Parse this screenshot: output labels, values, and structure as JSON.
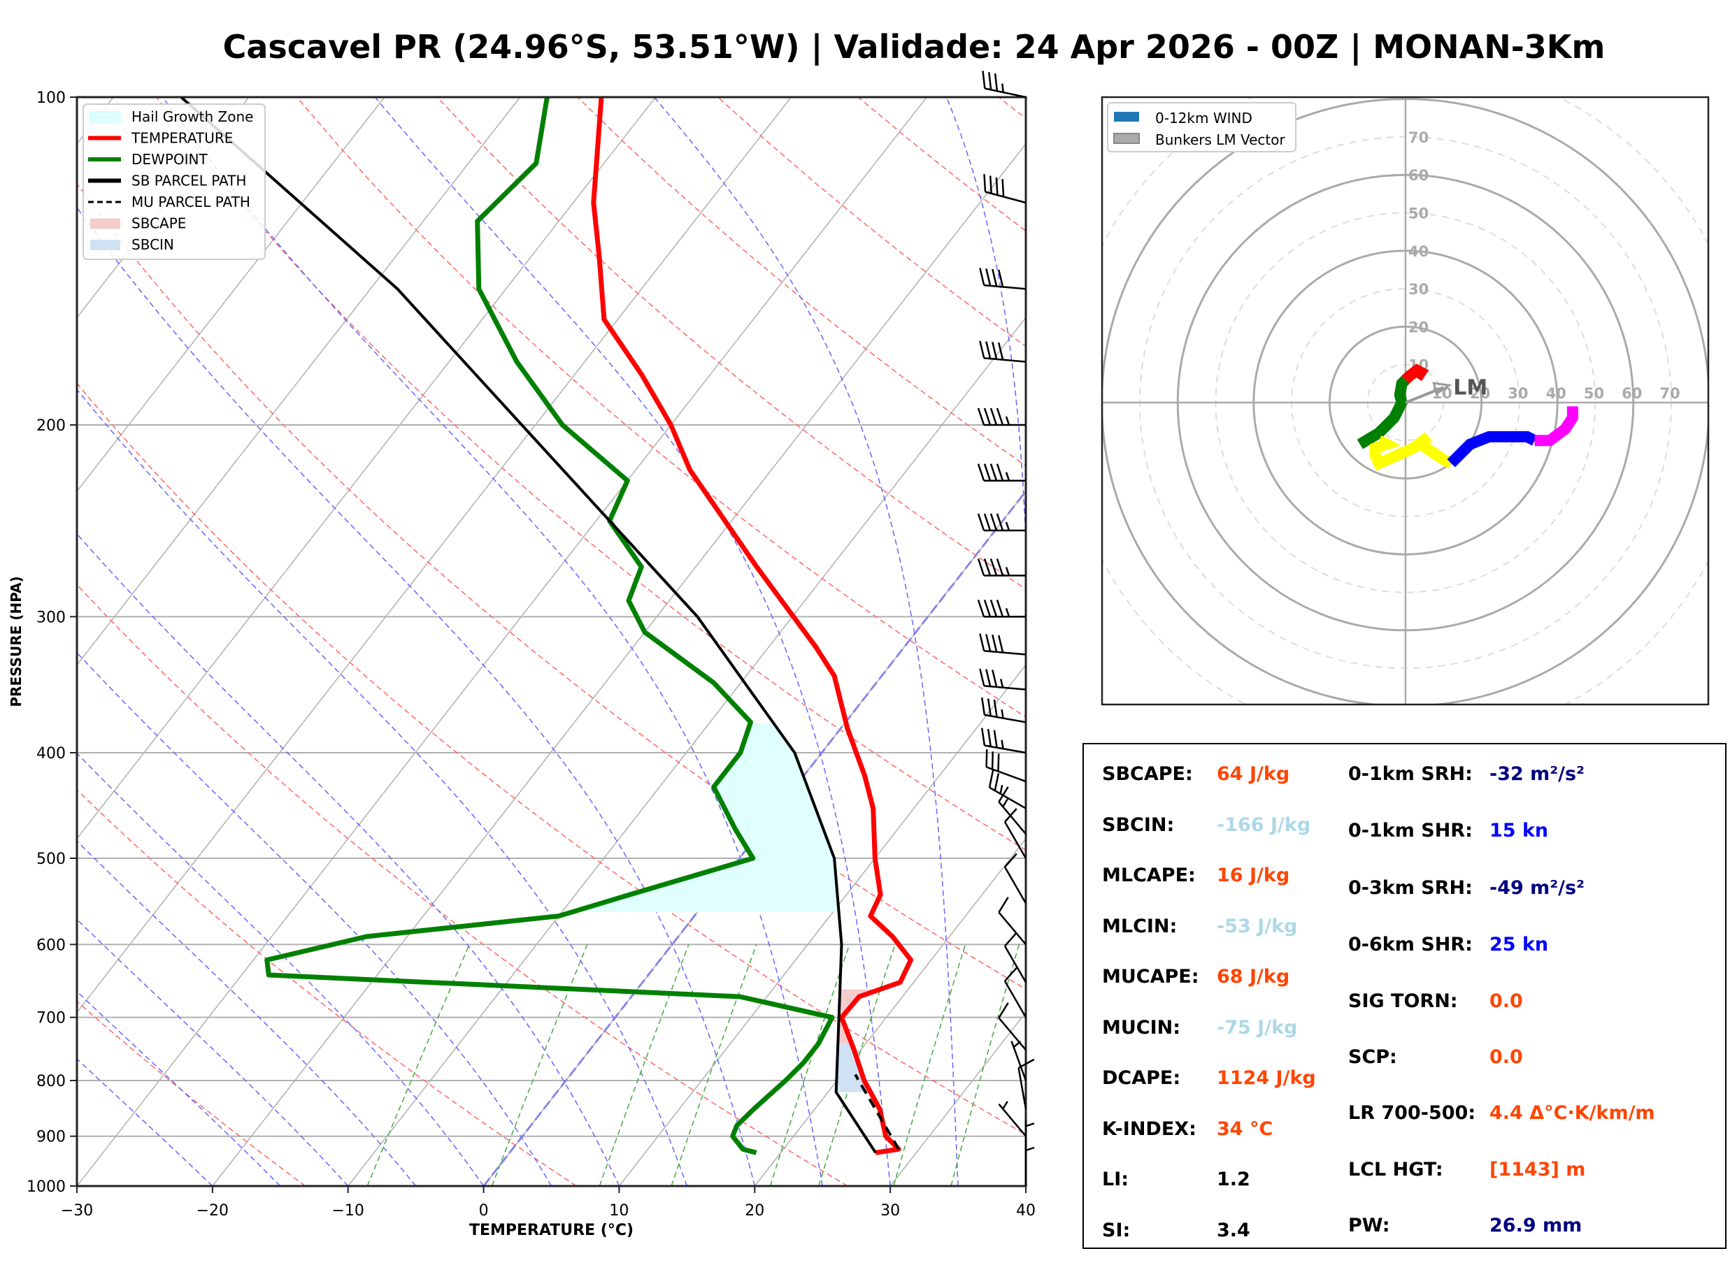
{
  "title": "Cascavel PR (24.96°S, 53.51°W) | Validade: 24 Apr 2026 - 00Z | MONAN-3Km",
  "chart_data": [
    {
      "type": "line",
      "subtype": "skew-t log-p",
      "xlabel": "TEMPERATURE (°C)",
      "ylabel": "PRESSURE (HPA)",
      "xlim": [
        -30,
        40
      ],
      "ylim": [
        1000,
        100
      ],
      "x_ticks": [
        -30,
        -20,
        -10,
        0,
        10,
        20,
        30,
        40
      ],
      "x_tick_labels": [
        "−30",
        "−20",
        "−10",
        "0",
        "10",
        "20",
        "30",
        "40"
      ],
      "y_ticks": [
        1000,
        900,
        800,
        700,
        600,
        500,
        400,
        300,
        200,
        100
      ],
      "y_tick_labels": [
        "1000",
        "900",
        "800",
        "700",
        "600",
        "500",
        "400",
        "300",
        "200",
        "100"
      ],
      "grid": true,
      "legend_position": "top-left",
      "legend": [
        {
          "label": "Hail Growth Zone",
          "kind": "patch",
          "color": "#e0ffff"
        },
        {
          "label": "TEMPERATURE",
          "kind": "line",
          "color": "#ff0000"
        },
        {
          "label": "DEWPOINT",
          "kind": "line",
          "color": "#008000"
        },
        {
          "label": "SB PARCEL PATH",
          "kind": "line",
          "color": "#000000"
        },
        {
          "label": "MU PARCEL PATH",
          "kind": "dashed",
          "color": "#000000"
        },
        {
          "label": "SBCAPE",
          "kind": "patch",
          "color": "#f4cccc"
        },
        {
          "label": "SBCIN",
          "kind": "patch",
          "color": "#cfe2f3"
        }
      ],
      "series": [
        {
          "name": "TEMPERATURE",
          "color": "#ff0000",
          "points": [
            [
              932,
              27.0
            ],
            [
              925,
              28.5
            ],
            [
              900,
              26.8
            ],
            [
              850,
              24.8
            ],
            [
              800,
              22.0
            ],
            [
              750,
              19.5
            ],
            [
              700,
              16.7
            ],
            [
              670,
              16.8
            ],
            [
              650,
              19.0
            ],
            [
              620,
              18.5
            ],
            [
              590,
              15.8
            ],
            [
              565,
              13.0
            ],
            [
              540,
              12.5
            ],
            [
              500,
              10.0
            ],
            [
              450,
              7.0
            ],
            [
              420,
              4.5
            ],
            [
              380,
              0.5
            ],
            [
              340,
              -3.5
            ],
            [
              320,
              -6.5
            ],
            [
              270,
              -15.5
            ],
            [
              220,
              -26.0
            ],
            [
              200,
              -30.0
            ],
            [
              180,
              -35.0
            ],
            [
              160,
              -41.0
            ],
            [
              140,
              -45.0
            ],
            [
              125,
              -48.5
            ],
            [
              100,
              -54.0
            ]
          ]
        },
        {
          "name": "DEWPOINT",
          "color": "#008000",
          "points": [
            [
              932,
              18.2
            ],
            [
              925,
              17.0
            ],
            [
              900,
              15.5
            ],
            [
              880,
              15.2
            ],
            [
              850,
              15.5
            ],
            [
              800,
              16.2
            ],
            [
              770,
              16.5
            ],
            [
              740,
              16.5
            ],
            [
              700,
              16.0
            ],
            [
              670,
              8.0
            ],
            [
              640,
              -28.0
            ],
            [
              620,
              -29.0
            ],
            [
              590,
              -23.0
            ],
            [
              565,
              -10.0
            ],
            [
              540,
              -6.0
            ],
            [
              500,
              1.0
            ],
            [
              470,
              -2.0
            ],
            [
              430,
              -6.0
            ],
            [
              400,
              -6.0
            ],
            [
              375,
              -7.0
            ],
            [
              345,
              -12.0
            ],
            [
              310,
              -20.0
            ],
            [
              290,
              -23.0
            ],
            [
              270,
              -24.0
            ],
            [
              245,
              -29.0
            ],
            [
              225,
              -30.0
            ],
            [
              200,
              -38.0
            ],
            [
              175,
              -45.0
            ],
            [
              150,
              -52.0
            ],
            [
              130,
              -56.0
            ],
            [
              115,
              -55.0
            ],
            [
              100,
              -58.0
            ]
          ]
        },
        {
          "name": "SB PARCEL PATH",
          "color": "#000000",
          "points": [
            [
              932,
              27.0
            ],
            [
              820,
              20.6
            ],
            [
              700,
              16.5
            ],
            [
              600,
              12.5
            ],
            [
              500,
              7.0
            ],
            [
              400,
              -2.0
            ],
            [
              300,
              -17.0
            ],
            [
              200,
              -41.0
            ],
            [
              150,
              -58.0
            ],
            [
              100,
              -85.0
            ]
          ]
        },
        {
          "name": "MU PARCEL PATH",
          "color": "#000000",
          "dashed": true,
          "points": [
            [
              925,
              28.5
            ],
            [
              790,
              21.0
            ]
          ]
        }
      ],
      "shaded_regions": [
        {
          "name": "Hail Growth Zone",
          "pressure_range": [
            560,
            375
          ]
        },
        {
          "name": "SBCAPE",
          "pressure_range": [
            740,
            660
          ]
        },
        {
          "name": "SBCIN",
          "pressure_range": [
            820,
            740
          ]
        }
      ],
      "wind_barbs": {
        "side": "right",
        "levels_hpa": [
          100,
          125,
          150,
          175,
          200,
          225,
          250,
          275,
          300,
          325,
          350,
          375,
          400,
          425,
          450,
          475,
          500,
          550,
          600,
          650,
          700,
          750,
          800,
          850,
          900,
          950,
          1000
        ],
        "speeds_kn": [
          35,
          40,
          40,
          40,
          45,
          45,
          45,
          45,
          45,
          40,
          35,
          35,
          35,
          30,
          25,
          15,
          10,
          10,
          10,
          10,
          10,
          10,
          5,
          10,
          5,
          5,
          5
        ],
        "directions_deg": [
          282,
          285,
          275,
          275,
          270,
          270,
          270,
          270,
          270,
          275,
          275,
          280,
          280,
          290,
          300,
          320,
          330,
          330,
          320,
          330,
          330,
          320,
          340,
          350,
          320,
          0,
          0
        ]
      }
    },
    {
      "type": "line",
      "subtype": "hodograph",
      "legend_position": "top-left",
      "legend": [
        {
          "label": "0-12km WIND",
          "color": "#1f77b4"
        },
        {
          "label": "Bunkers LM Vector",
          "color": "#aaaaaa"
        }
      ],
      "ring_labels": [
        "10",
        "20",
        "30",
        "40",
        "50",
        "60",
        "70"
      ],
      "rings_kn": [
        10,
        20,
        30,
        40,
        50,
        60,
        70
      ],
      "range_kn": 80,
      "annotation": "LM",
      "bunkers_lm_vector": [
        10,
        4
      ],
      "segments": [
        {
          "layer": "0-1km",
          "color": "#ff0000",
          "points": [
            [
              0,
              6
            ],
            [
              1,
              7
            ],
            [
              3,
              8.5
            ],
            [
              4,
              8
            ],
            [
              3,
              6.5
            ]
          ]
        },
        {
          "layer": "1-3km",
          "color": "#008000",
          "points": [
            [
              0,
              6
            ],
            [
              -1,
              5
            ],
            [
              -1.5,
              2
            ],
            [
              -1,
              0
            ],
            [
              -3,
              -4
            ],
            [
              -7,
              -8
            ],
            [
              -12,
              -11
            ]
          ]
        },
        {
          "layer": "3-6km",
          "color": "#ffff00",
          "points": [
            [
              -7,
              -10
            ],
            [
              -5,
              -11
            ],
            [
              -8,
              -12
            ],
            [
              -8,
              -14
            ],
            [
              -7,
              -16
            ],
            [
              2,
              -12
            ],
            [
              6,
              -9
            ],
            [
              4,
              -11
            ],
            [
              10,
              -15
            ],
            [
              12,
              -16
            ]
          ]
        },
        {
          "layer": "6-9km",
          "color": "#0000ff",
          "points": [
            [
              12,
              -16
            ],
            [
              14,
              -14
            ],
            [
              17,
              -11
            ],
            [
              22,
              -9
            ],
            [
              28,
              -9
            ],
            [
              32,
              -9
            ],
            [
              34,
              -10
            ]
          ]
        },
        {
          "layer": "9-12km",
          "color": "#ff00ff",
          "points": [
            [
              34,
              -10
            ],
            [
              38,
              -10
            ],
            [
              42,
              -7
            ],
            [
              44,
              -4
            ],
            [
              44,
              -1
            ]
          ]
        }
      ]
    }
  ],
  "stats": {
    "left": [
      {
        "label": "SBCAPE:",
        "value": "64 J/kg",
        "color": "#ff4500"
      },
      {
        "label": "SBCIN:",
        "value": "-166 J/kg",
        "color": "#add8e6"
      },
      {
        "label": "MLCAPE:",
        "value": "16 J/kg",
        "color": "#ff4500"
      },
      {
        "label": "MLCIN:",
        "value": "-53 J/kg",
        "color": "#add8e6"
      },
      {
        "label": "MUCAPE:",
        "value": "68 J/kg",
        "color": "#ff4500"
      },
      {
        "label": "MUCIN:",
        "value": "-75 J/kg",
        "color": "#add8e6"
      },
      {
        "label": "DCAPE:",
        "value": "1124 J/kg",
        "color": "#ff4500"
      },
      {
        "label": "K-INDEX:",
        "value": "34 °C",
        "color": "#ff4500"
      },
      {
        "label": "LI:",
        "value": "1.2",
        "color": "#000000"
      },
      {
        "label": "SI:",
        "value": "3.4",
        "color": "#000000"
      }
    ],
    "right": [
      {
        "label": "0-1km SRH:",
        "value": "-32 m²/s²",
        "color": "#000080"
      },
      {
        "label": "0-1km SHR:",
        "value": "15 kn",
        "color": "#0000ff"
      },
      {
        "label": "0-3km SRH:",
        "value": "-49 m²/s²",
        "color": "#000080"
      },
      {
        "label": "0-6km SHR:",
        "value": "25 kn",
        "color": "#0000ff"
      },
      {
        "label": "SIG TORN:",
        "value": "0.0",
        "color": "#ff4500"
      },
      {
        "label": "SCP:",
        "value": "0.0",
        "color": "#ff4500"
      },
      {
        "label": "LR 700-500:",
        "value": "4.4 Δ°C·K/km/m",
        "color": "#ff4500"
      },
      {
        "label": "LCL HGT:",
        "value": "[1143] m",
        "color": "#ff4500"
      },
      {
        "label": "PW:",
        "value": "26.9 mm",
        "color": "#000080"
      }
    ]
  }
}
